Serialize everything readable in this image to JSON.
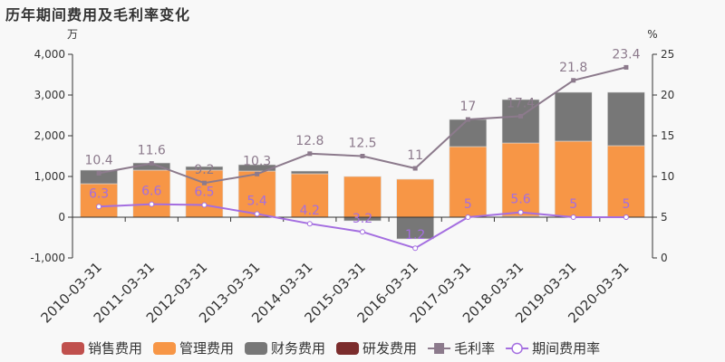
{
  "title": "历年期间费用及毛利率变化",
  "colors": {
    "sales": "#c0504d",
    "admin": "#f79646",
    "finance": "#777777",
    "rd": "#7b2c2c",
    "gross_margin": "#8c7a8c",
    "expense_rate": "#a46ee0"
  },
  "chart_data": {
    "type": "bar+line",
    "title": "历年期间费用及毛利率变化",
    "categories": [
      "2010-03-31",
      "2011-03-31",
      "2012-03-31",
      "2013-03-31",
      "2014-03-31",
      "2015-03-31",
      "2016-03-31",
      "2017-03-31",
      "2018-03-31",
      "2019-03-31",
      "2020-03-31"
    ],
    "left_axis": {
      "unit": "万",
      "ylim": [
        -1000,
        4000
      ],
      "ticks": [
        -1000,
        0,
        1000,
        2000,
        3000,
        4000
      ],
      "tick_labels": [
        "-1,000",
        "0",
        "1,000",
        "2,000",
        "3,000",
        "4,000"
      ]
    },
    "right_axis": {
      "unit": "%",
      "ylim": [
        0,
        25
      ],
      "ticks": [
        0,
        5,
        10,
        15,
        20,
        25
      ]
    },
    "series": [
      {
        "name": "销售费用",
        "type": "bar",
        "axis": "left",
        "values": [
          0,
          0,
          0,
          0,
          0,
          0,
          0,
          0,
          0,
          0,
          0
        ]
      },
      {
        "name": "管理费用",
        "type": "bar",
        "axis": "left",
        "values": [
          822,
          1156,
          1156,
          1133,
          1067,
          1000,
          933,
          1733,
          1800,
          1867,
          1756
        ]
      },
      {
        "name": "财务费用",
        "type": "bar",
        "axis": "left",
        "values": [
          334,
          177,
          88,
          156,
          66,
          -89,
          -533,
          667,
          1067,
          1200,
          1311
        ]
      },
      {
        "name": "研发费用",
        "type": "bar",
        "axis": "left",
        "values": [
          0,
          0,
          0,
          0,
          0,
          0,
          0,
          0,
          22,
          0,
          0
        ]
      },
      {
        "name": "毛利率",
        "type": "line",
        "axis": "right",
        "values": [
          10.4,
          11.6,
          9.2,
          10.3,
          12.8,
          12.5,
          11,
          17,
          17.4,
          21.8,
          23.4
        ]
      },
      {
        "name": "期间费用率",
        "type": "line",
        "axis": "right",
        "values": [
          6.3,
          6.6,
          6.5,
          5.4,
          4.2,
          3.2,
          1.2,
          5,
          5.6,
          5,
          5
        ]
      }
    ],
    "legend": [
      "销售费用",
      "管理费用",
      "财务费用",
      "研发费用",
      "毛利率",
      "期间费用率"
    ],
    "legend_position": "bottom",
    "grid": false
  }
}
